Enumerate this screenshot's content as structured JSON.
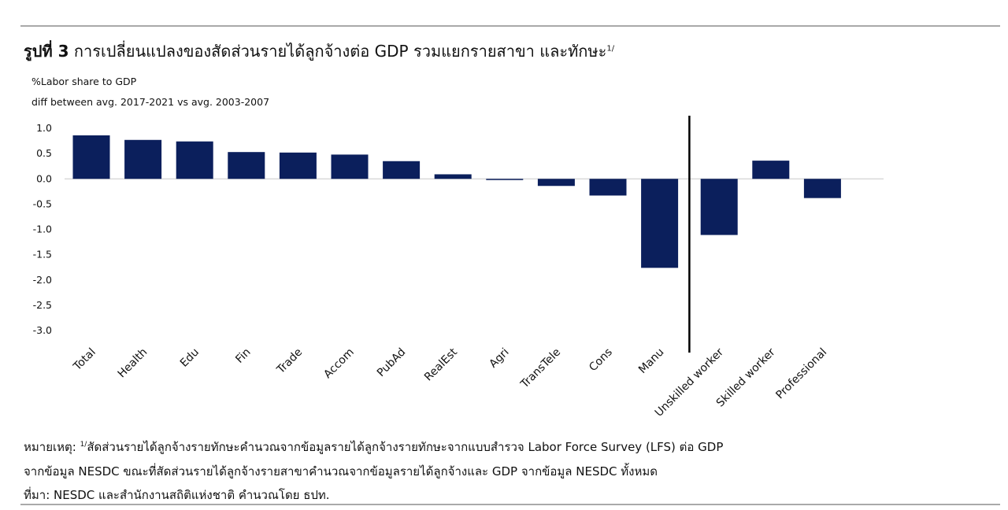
{
  "title": {
    "figure_label": "รูปที่ 3",
    "text": "การเปลี่ยนแปลงของสัดส่วนรายได้ลูกจ้างต่อ GDP รวมแยกรายสาขา และทักษะ",
    "superscript": "1/"
  },
  "subtitle": {
    "line1": "%Labor share to GDP",
    "line2": "diff between avg. 2017-2021  vs avg. 2003-2007"
  },
  "chart_data": {
    "type": "bar",
    "title": "",
    "xlabel": "",
    "ylabel": "%Labor share to GDP",
    "ylim": [
      -3.0,
      1.0
    ],
    "yticks": [
      "1.0",
      "0.5",
      "0.0",
      "-0.5",
      "-1.0",
      "-1.5",
      "-2.0",
      "-2.5",
      "-3.0"
    ],
    "ytick_values": [
      1.0,
      0.5,
      0.0,
      -0.5,
      -1.0,
      -1.5,
      -2.0,
      -2.5,
      -3.0
    ],
    "grid": false,
    "bar_color": "#0b1f5c",
    "separator_after_index": 11,
    "categories": [
      "Total",
      "Health",
      "Edu",
      "Fin",
      "Trade",
      "Accom",
      "PubAd",
      "RealEst",
      "Agri",
      "TransTele",
      "Cons",
      "Manu",
      "Unskilled worker",
      "Skilled worker",
      "Professional"
    ],
    "values": [
      0.86,
      0.77,
      0.74,
      0.53,
      0.52,
      0.48,
      0.35,
      0.09,
      -0.02,
      -0.14,
      -0.33,
      -1.76,
      -1.11,
      0.36,
      -0.38
    ]
  },
  "notes": {
    "line1_prefix": "หมายเหตุ: ",
    "line1_sup": "1/",
    "line1_text": "สัดส่วนรายได้ลูกจ้างรายทักษะคำนวณจากข้อมูลรายได้ลูกจ้างรายทักษะจากแบบสำรวจ Labor Force Survey (LFS) ต่อ GDP",
    "line2": "จากข้อมูล NESDC ขณะที่สัดส่วนรายได้ลูกจ้างรายสาขาคำนวณจากข้อมูลรายได้ลูกจ้างและ GDP จากข้อมูล NESDC ทั้งหมด",
    "line3": "ที่มา: NESDC และสำนักงานสถิติแห่งชาติ คำนวณโดย ธปท."
  }
}
